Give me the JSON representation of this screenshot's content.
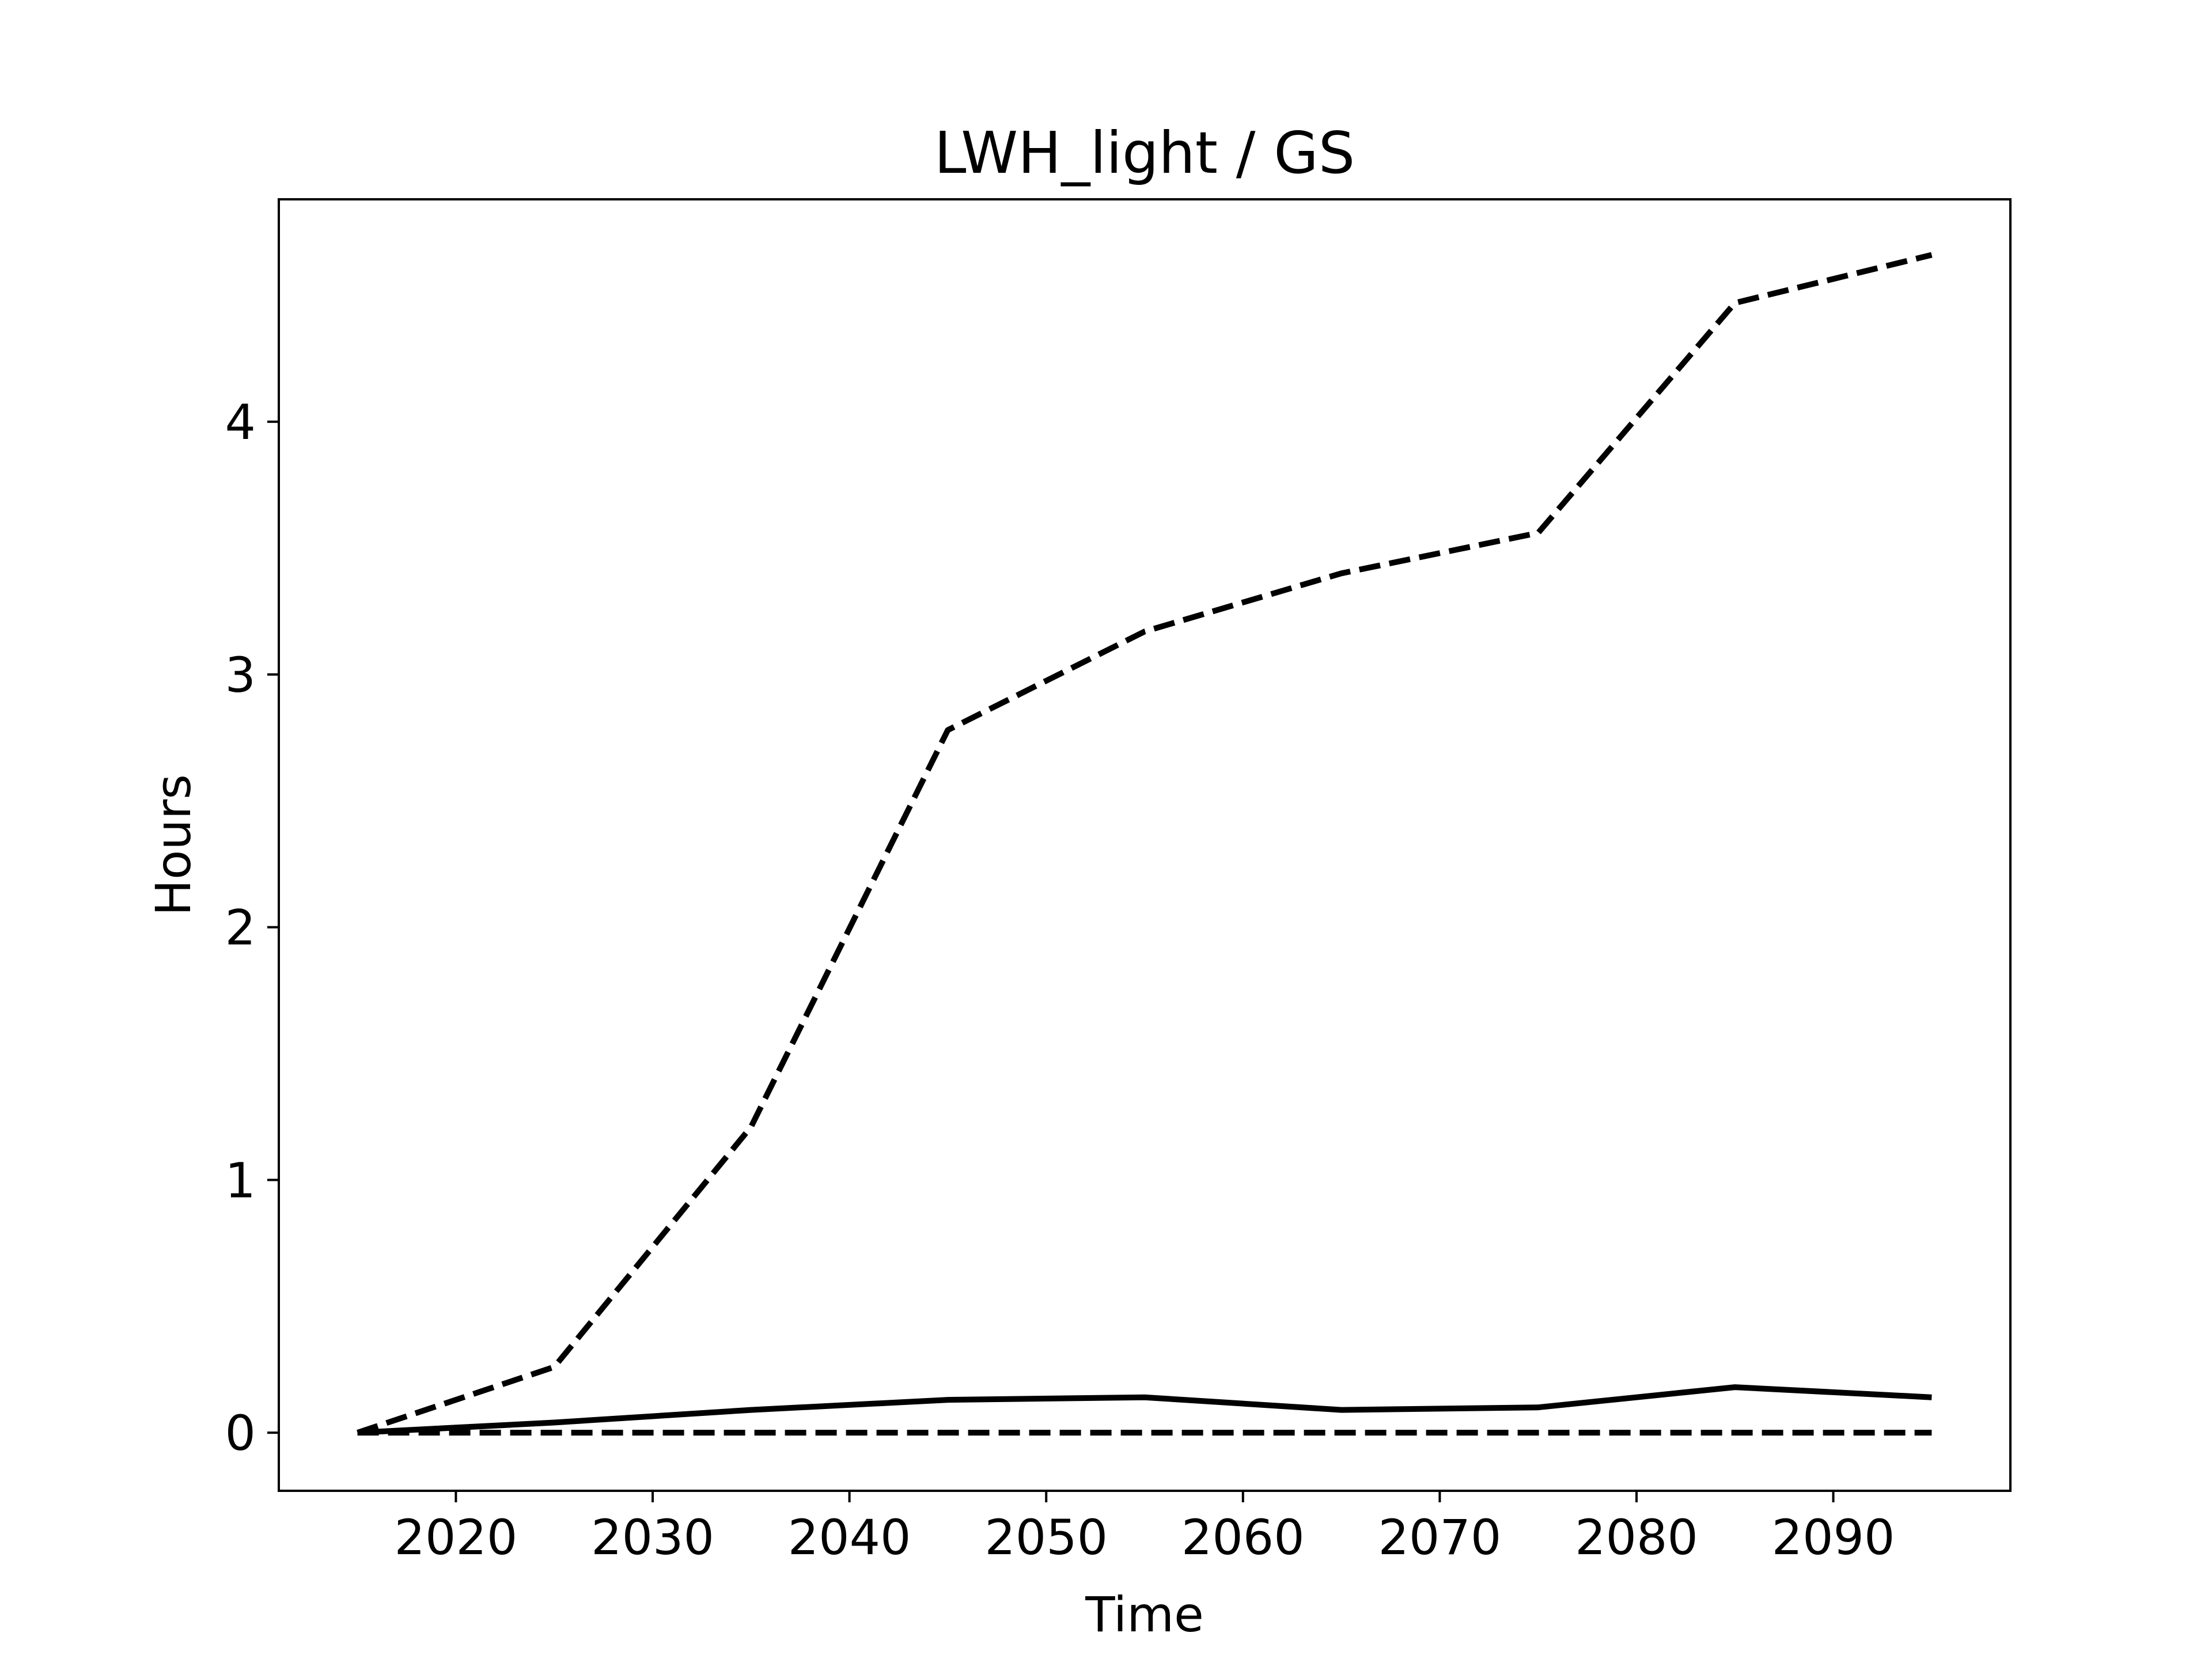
{
  "chart_data": {
    "type": "line",
    "title": "LWH_light / GS",
    "xlabel": "Time",
    "ylabel": "Hours",
    "xlim": [
      2011,
      2099
    ],
    "ylim": [
      -0.23,
      4.88
    ],
    "xticks": [
      2020,
      2030,
      2040,
      2050,
      2060,
      2070,
      2080,
      2090
    ],
    "yticks": [
      0,
      1,
      2,
      3,
      4
    ],
    "grid": false,
    "legend": "none",
    "x": [
      2015,
      2025,
      2035,
      2045,
      2055,
      2065,
      2075,
      2085,
      2095
    ],
    "series": [
      {
        "style": "dashed",
        "color": "#000000",
        "values": [
          0.0,
          0.26,
          1.21,
          2.78,
          3.17,
          3.4,
          3.56,
          4.47,
          4.66
        ]
      },
      {
        "style": "solid",
        "color": "#000000",
        "values": [
          0.0,
          0.04,
          0.09,
          0.13,
          0.14,
          0.09,
          0.1,
          0.18,
          0.14
        ]
      },
      {
        "style": "dashed",
        "color": "#000000",
        "values": [
          0.0,
          0.0,
          0.0,
          0.0,
          0.0,
          0.0,
          0.0,
          0.0,
          0.0
        ]
      }
    ]
  }
}
